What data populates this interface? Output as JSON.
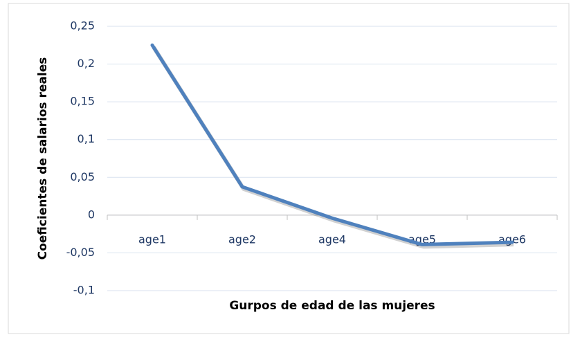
{
  "chart_data": {
    "type": "line",
    "x_label": "Gurpos de edad de las mujeres",
    "y_label": "Coeficientes de salarios reales",
    "categories": [
      "age1",
      "age2",
      "age4",
      "age5",
      "age6"
    ],
    "series": [
      {
        "color": "#4f81bd",
        "values": [
          0.225,
          0.0375,
          -0.004,
          -0.039,
          -0.036
        ]
      }
    ],
    "ylim": [
      -0.1,
      0.25
    ],
    "yticks": [
      {
        "value": -0.1,
        "label": "-0,1"
      },
      {
        "value": -0.05,
        "label": "-0,05"
      },
      0,
      {
        "value": 0.05,
        "label": "0,05"
      },
      {
        "value": 0.1,
        "label": "0,1"
      },
      {
        "value": 0.15,
        "label": "0,15"
      },
      {
        "value": 0.2,
        "label": "0,2"
      },
      {
        "value": 0.25,
        "label": "0,25"
      }
    ],
    "grid": true
  }
}
